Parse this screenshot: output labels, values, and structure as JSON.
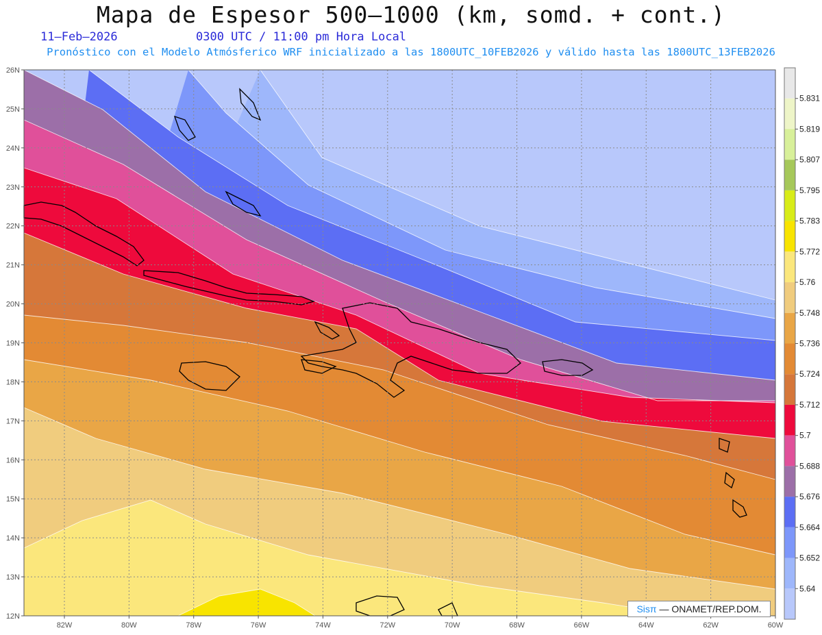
{
  "header": {
    "title": "Mapa de Espesor 500—1000 (km, somd. + cont.)",
    "date": "11—Feb—2026",
    "time": "0300 UTC / 11:00 pm Hora Local",
    "forecast": "Pronóstico con el Modelo Atmósferico WRF inicializado a las 1800UTC_10FEB2026 y válido hasta las  1800UTC_13FEB2026"
  },
  "axes": {
    "lat_labels": [
      "26N",
      "25N",
      "24N",
      "23N",
      "22N",
      "21N",
      "20N",
      "19N",
      "18N",
      "17N",
      "16N",
      "15N",
      "14N",
      "13N",
      "12N"
    ],
    "lon_labels": [
      "82W",
      "80W",
      "78W",
      "76W",
      "74W",
      "72W",
      "70W",
      "68W",
      "66W",
      "64W",
      "62W",
      "60W"
    ]
  },
  "legend": {
    "levels": [
      "5.831",
      "5.819",
      "5.807",
      "5.795",
      "5.783",
      "5.772",
      "5.76",
      "5.748",
      "5.736",
      "5.724",
      "5.712",
      "5.7",
      "5.688",
      "5.676",
      "5.664",
      "5.652",
      "5.64"
    ],
    "colors": [
      "#e8e8e8",
      "#eef5c8",
      "#d8f09a",
      "#a6c85a",
      "#d8ec18",
      "#f8e400",
      "#fbe77c",
      "#f0cc7e",
      "#e9a646",
      "#e38a34",
      "#d6773a",
      "#ee0a3c",
      "#e0509a",
      "#9c6fa8",
      "#5c6ef4",
      "#7d97fa",
      "#9eb7fb",
      "#b8c8fb"
    ]
  },
  "branding": {
    "sis": "Sisπ",
    "text": "— ONAMET/REP.DOM."
  }
}
